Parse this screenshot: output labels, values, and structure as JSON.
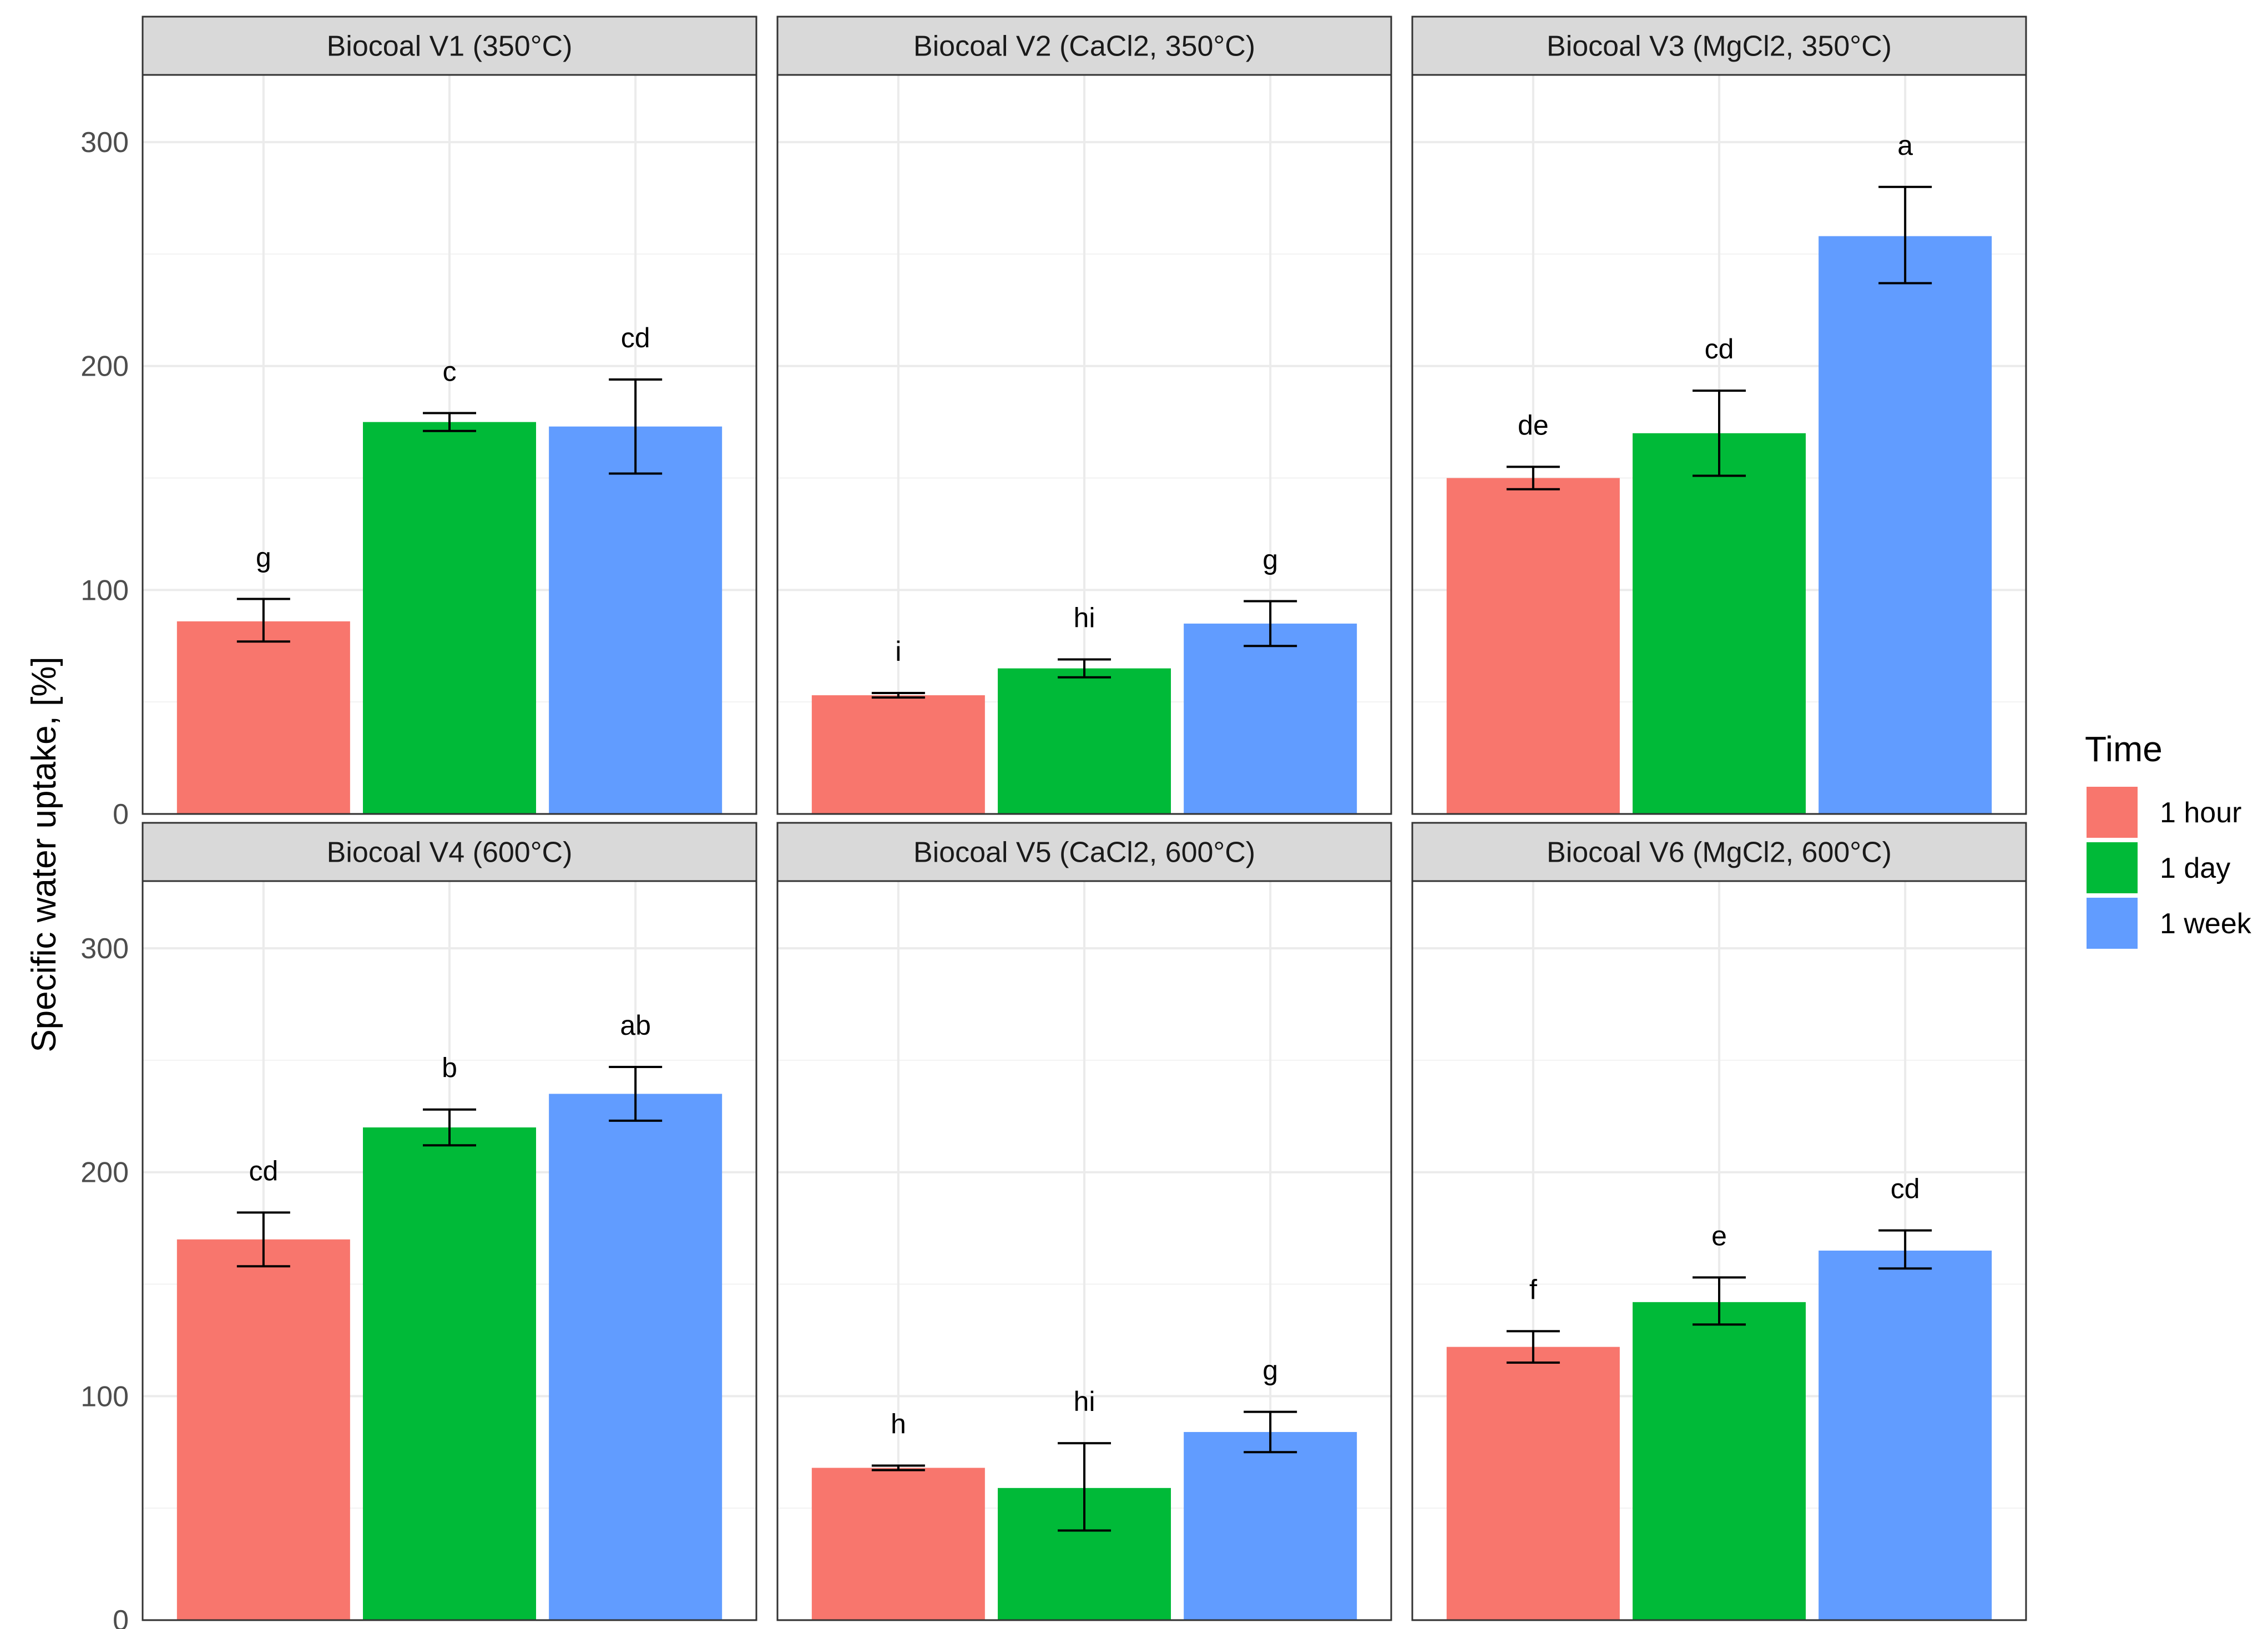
{
  "chart_data": {
    "type": "bar",
    "facet_layout": "2x3",
    "ylabel": "Specific water uptake, [%]",
    "xlabel": "",
    "ylim": [
      0,
      330
    ],
    "yticks": [
      0,
      100,
      200,
      300
    ],
    "grid": true,
    "legend": {
      "title": "Time",
      "position": "right",
      "entries": [
        {
          "label": "1 hour",
          "color": "#F8766D"
        },
        {
          "label": "1 day",
          "color": "#00BA38"
        },
        {
          "label": "1 week",
          "color": "#619CFF"
        }
      ]
    },
    "panels": [
      {
        "title": "Biocoal V1 (350°C)",
        "bars": [
          {
            "series": "1 hour",
            "value": 86,
            "error_low": 77,
            "error_high": 96,
            "label": "g"
          },
          {
            "series": "1 day",
            "value": 175,
            "error_low": 171,
            "error_high": 179,
            "label": "c"
          },
          {
            "series": "1 week",
            "value": 173,
            "error_low": 152,
            "error_high": 194,
            "label": "cd"
          }
        ]
      },
      {
        "title": "Biocoal V2 (CaCl2, 350°C)",
        "bars": [
          {
            "series": "1 hour",
            "value": 53,
            "error_low": 52,
            "error_high": 54,
            "label": "i"
          },
          {
            "series": "1 day",
            "value": 65,
            "error_low": 61,
            "error_high": 69,
            "label": "hi"
          },
          {
            "series": "1 week",
            "value": 85,
            "error_low": 75,
            "error_high": 95,
            "label": "g"
          }
        ]
      },
      {
        "title": "Biocoal V3 (MgCl2, 350°C)",
        "bars": [
          {
            "series": "1 hour",
            "value": 150,
            "error_low": 145,
            "error_high": 155,
            "label": "de"
          },
          {
            "series": "1 day",
            "value": 170,
            "error_low": 151,
            "error_high": 189,
            "label": "cd"
          },
          {
            "series": "1 week",
            "value": 258,
            "error_low": 237,
            "error_high": 280,
            "label": "a"
          }
        ]
      },
      {
        "title": "Biocoal V4 (600°C)",
        "bars": [
          {
            "series": "1 hour",
            "value": 170,
            "error_low": 158,
            "error_high": 182,
            "label": "cd"
          },
          {
            "series": "1 day",
            "value": 220,
            "error_low": 212,
            "error_high": 228,
            "label": "b"
          },
          {
            "series": "1 week",
            "value": 235,
            "error_low": 223,
            "error_high": 247,
            "label": "ab"
          }
        ]
      },
      {
        "title": "Biocoal V5 (CaCl2, 600°C)",
        "bars": [
          {
            "series": "1 hour",
            "value": 68,
            "error_low": 67,
            "error_high": 69,
            "label": "h"
          },
          {
            "series": "1 day",
            "value": 59,
            "error_low": 40,
            "error_high": 79,
            "label": "hi"
          },
          {
            "series": "1 week",
            "value": 84,
            "error_low": 75,
            "error_high": 93,
            "label": "g"
          }
        ]
      },
      {
        "title": "Biocoal V6 (MgCl2, 600°C)",
        "bars": [
          {
            "series": "1 hour",
            "value": 122,
            "error_low": 115,
            "error_high": 129,
            "label": "f"
          },
          {
            "series": "1 day",
            "value": 142,
            "error_low": 132,
            "error_high": 153,
            "label": "e"
          },
          {
            "series": "1 week",
            "value": 165,
            "error_low": 157,
            "error_high": 174,
            "label": "cd"
          }
        ]
      }
    ]
  }
}
